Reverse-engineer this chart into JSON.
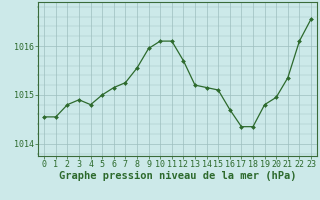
{
  "x": [
    0,
    1,
    2,
    3,
    4,
    5,
    6,
    7,
    8,
    9,
    10,
    11,
    12,
    13,
    14,
    15,
    16,
    17,
    18,
    19,
    20,
    21,
    22,
    23
  ],
  "y": [
    1014.55,
    1014.55,
    1014.8,
    1014.9,
    1014.8,
    1015.0,
    1015.15,
    1015.25,
    1015.55,
    1015.95,
    1016.1,
    1016.1,
    1015.7,
    1015.2,
    1015.15,
    1015.1,
    1014.7,
    1014.35,
    1014.35,
    1014.8,
    1014.95,
    1015.35,
    1016.1,
    1016.55
  ],
  "line_color": "#2d6a2d",
  "marker": "D",
  "marker_size": 2.0,
  "line_width": 0.9,
  "bg_color": "#cce9e9",
  "grid_color": "#9dbfbf",
  "border_color": "#3a6b3a",
  "xlabel": "Graphe pression niveau de la mer (hPa)",
  "xlabel_fontsize": 7.5,
  "xlabel_color": "#2d6a2d",
  "tick_label_color": "#2d6a2d",
  "tick_label_fontsize": 6.0,
  "ylim": [
    1013.75,
    1016.9
  ],
  "yticks": [
    1014,
    1015,
    1016
  ],
  "xtick_labels": [
    "0",
    "1",
    "2",
    "3",
    "4",
    "5",
    "6",
    "7",
    "8",
    "9",
    "10",
    "11",
    "12",
    "13",
    "14",
    "15",
    "16",
    "17",
    "18",
    "19",
    "20",
    "21",
    "22",
    "23"
  ]
}
